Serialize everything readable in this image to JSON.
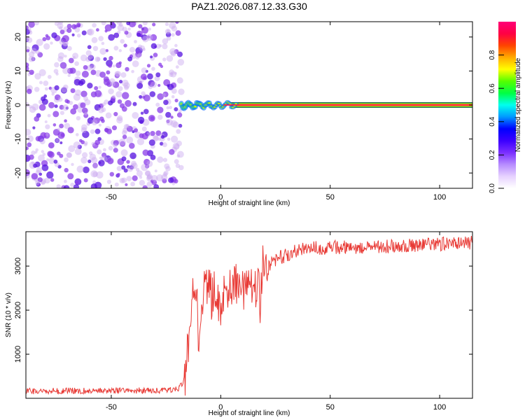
{
  "figure_title": "PAZ1.2026.087.12.33.G30",
  "colors": {
    "snr_line": "#e83a35",
    "gauss": [
      "#c9a8f0",
      "#8a3ce8",
      "#5512e0"
    ],
    "colormap": [
      "#ffffff",
      "#e7d2ff",
      "#b78cff",
      "#7b2fff",
      "#3b00ff",
      "#0000ff",
      "#0099ff",
      "#00ffee",
      "#00ff44",
      "#55ff00",
      "#ffff00",
      "#ffaa00",
      "#ff4400",
      "#ff0044",
      "#ff0077"
    ]
  },
  "chart_data": [
    {
      "type": "heatmap",
      "title": "PAZ1.2026.087.12.33.G30",
      "xlabel": "Height of straight line (km)",
      "ylabel": "Frequency (Hz)",
      "xlim": [
        -89,
        115
      ],
      "ylim": [
        -24.5,
        24.5
      ],
      "xticks": [
        -50,
        0,
        50,
        100
      ],
      "yticks": [
        -20,
        -10,
        0,
        10,
        20
      ],
      "noise_region_x": [
        -89,
        -18
      ],
      "signal": {
        "x_start": -18,
        "center_frequency": 0,
        "band_halfwidth_hz": 0.8,
        "peak_amplitude": 1.0
      },
      "colorbar": {
        "label": "Normalized spectral amplitude",
        "range": [
          0,
          1
        ],
        "ticks": [
          0.0,
          0.2,
          0.4,
          0.6,
          0.8
        ]
      }
    },
    {
      "type": "line",
      "xlabel": "Height of straight line (km)",
      "ylabel": "SNR (10 * v/v)",
      "xlim": [
        -89,
        115
      ],
      "ylim": [
        0,
        3780
      ],
      "xticks": [
        -50,
        0,
        50,
        100
      ],
      "yticks": [
        1000,
        2000,
        3000
      ],
      "series": [
        {
          "name": "SNR",
          "x": [
            -89,
            -70,
            -50,
            -30,
            -20,
            -17,
            -16,
            -15,
            -14,
            -13,
            -12,
            -11,
            -10,
            -9,
            -8,
            -7,
            -6,
            -5,
            -4,
            -3,
            -2,
            -1,
            0,
            1,
            2,
            3,
            4,
            5,
            6,
            7,
            8,
            9,
            10,
            11,
            12,
            13,
            14,
            15,
            16,
            17,
            18,
            19,
            20,
            21,
            22,
            24,
            26,
            28,
            30,
            32,
            35,
            40,
            50,
            60,
            70,
            80,
            90,
            100,
            110,
            115
          ],
          "values": [
            160,
            170,
            170,
            180,
            200,
            350,
            600,
            1100,
            1800,
            2300,
            2500,
            2600,
            1200,
            2000,
            2300,
            2500,
            2400,
            2500,
            2200,
            2400,
            2300,
            2200,
            1900,
            2300,
            2400,
            2500,
            2600,
            2300,
            2500,
            2600,
            2400,
            2600,
            2500,
            2400,
            2600,
            2500,
            2700,
            2500,
            2400,
            2600,
            2200,
            3000,
            3100,
            2900,
            3000,
            3100,
            3200,
            3200,
            3250,
            3300,
            3350,
            3400,
            3420,
            3430,
            3440,
            3450,
            3480,
            3500,
            3520,
            3530
          ],
          "color": "#e83a35"
        }
      ]
    }
  ]
}
